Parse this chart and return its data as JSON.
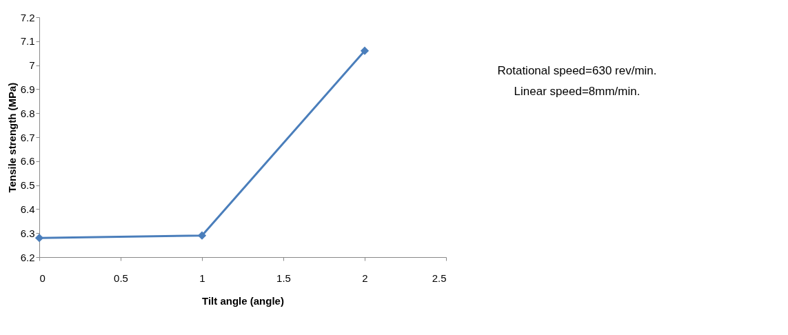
{
  "chart_data": {
    "type": "line",
    "xlabel": "Tilt angle (angle)",
    "ylabel": "Tensile strength (MPa)",
    "x": [
      0,
      1,
      2
    ],
    "series": [
      {
        "color": "#4a7ebb",
        "values": [
          6.28,
          6.29,
          7.06
        ]
      }
    ],
    "xlim": [
      0,
      2.5
    ],
    "xticks": [
      0,
      0.5,
      1,
      1.5,
      2,
      2.5
    ],
    "ylim": [
      6.2,
      7.2
    ],
    "yticks": [
      6.2,
      6.3,
      6.4,
      6.5,
      6.6,
      6.7,
      6.8,
      6.9,
      7,
      7.1,
      7.2
    ],
    "grid": false,
    "legend": false,
    "marker": "diamond",
    "line_style": "solid",
    "annotations": [
      "Rotational speed=630  rev/min.",
      "Linear speed=8mm/min."
    ]
  }
}
